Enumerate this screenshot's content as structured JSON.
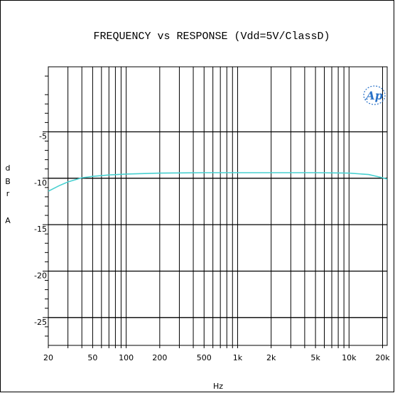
{
  "chart_data": {
    "type": "line",
    "title": "FREQUENCY vs  RESPONSE (Vdd=5V/ClassD)",
    "xlabel": "Hz",
    "ylabel_lines": [
      "d",
      "B",
      "r",
      "",
      "A"
    ],
    "logo": "Ap",
    "x_scale": "log",
    "xlim": [
      20,
      22000
    ],
    "ylim": [
      -28,
      2
    ],
    "x_ticks": [
      {
        "value": 20,
        "label": "20"
      },
      {
        "value": 50,
        "label": "50"
      },
      {
        "value": 100,
        "label": "100"
      },
      {
        "value": 200,
        "label": "200"
      },
      {
        "value": 500,
        "label": "500"
      },
      {
        "value": 1000,
        "label": "1k"
      },
      {
        "value": 2000,
        "label": "2k"
      },
      {
        "value": 5000,
        "label": "5k"
      },
      {
        "value": 10000,
        "label": "10k"
      },
      {
        "value": 20000,
        "label": "20k"
      }
    ],
    "y_ticks": [
      {
        "value": -5,
        "label": "-5"
      },
      {
        "value": -10,
        "label": "-10"
      },
      {
        "value": -15,
        "label": "-15"
      },
      {
        "value": -20,
        "label": "-20"
      },
      {
        "value": -25,
        "label": "-25"
      }
    ],
    "grid": true,
    "series": [
      {
        "color": "#48d0d0",
        "x": [
          20,
          25,
          30,
          40,
          50,
          70,
          100,
          200,
          500,
          1000,
          2000,
          5000,
          10000,
          15000,
          20000,
          22000
        ],
        "y": [
          -11.4,
          -10.8,
          -10.4,
          -9.95,
          -9.8,
          -9.65,
          -9.55,
          -9.45,
          -9.4,
          -9.4,
          -9.4,
          -9.4,
          -9.45,
          -9.6,
          -9.95,
          -10.1
        ]
      }
    ]
  }
}
